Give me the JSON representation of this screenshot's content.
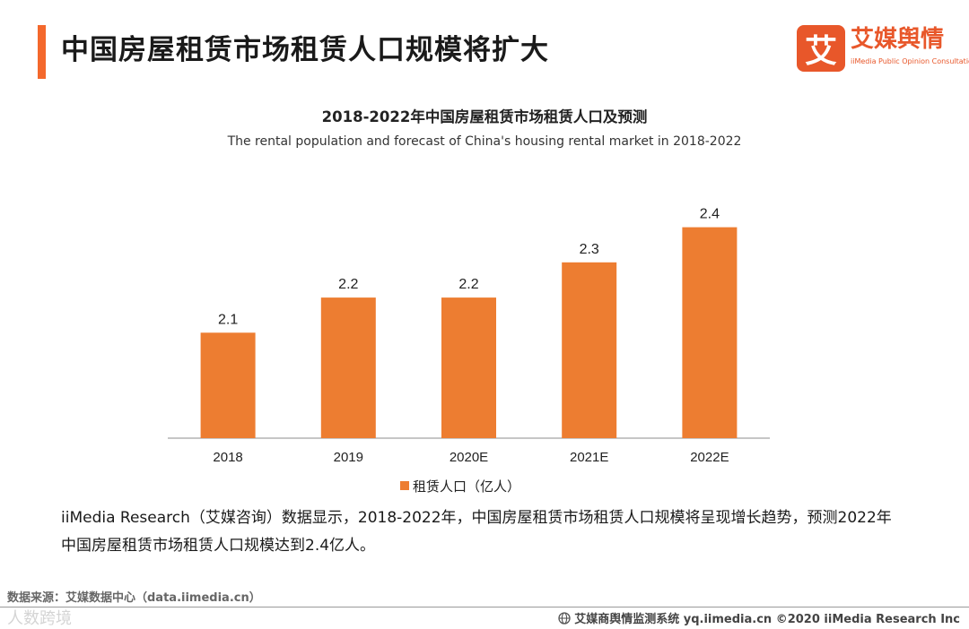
{
  "header": {
    "title": "中国房屋租赁市场租赁人口规模将扩大",
    "accent_color": "#F4682C"
  },
  "logo": {
    "mark": "艾",
    "name": "艾媒舆情",
    "subtitle": "iiMedia Public Opinion Consultation",
    "color": "#E8572A"
  },
  "chart_data": {
    "type": "bar",
    "title": "2018-2022年中国房屋租赁市场租赁人口及预测",
    "subtitle": "The rental population and forecast of China's housing rental market in 2018-2022",
    "categories": [
      "2018",
      "2019",
      "2020E",
      "2021E",
      "2022E"
    ],
    "series": [
      {
        "name": "租赁人口（亿人）",
        "values": [
          2.1,
          2.2,
          2.2,
          2.3,
          2.4
        ]
      }
    ],
    "data_labels": [
      "2.1",
      "2.2",
      "2.2",
      "2.3",
      "2.4"
    ],
    "bar_color": "#ED7D31",
    "ylim": [
      1.8,
      2.45
    ],
    "grid": false,
    "legend_position": "bottom",
    "xlabel": "",
    "ylabel": ""
  },
  "description": "iiMedia Research（艾媒咨询）数据显示，2018-2022年，中国房屋租赁市场租赁人口规模将呈现增长趋势，预测2022年中国房屋租赁市场租赁人口规模达到2.4亿人。",
  "source": "数据来源：艾媒数据中心（data.iimedia.cn）",
  "watermark": "人数跨境",
  "footer": {
    "text": "艾媒商舆情监测系统 yq.iimedia.cn  ©2020  iiMedia Research  Inc"
  }
}
